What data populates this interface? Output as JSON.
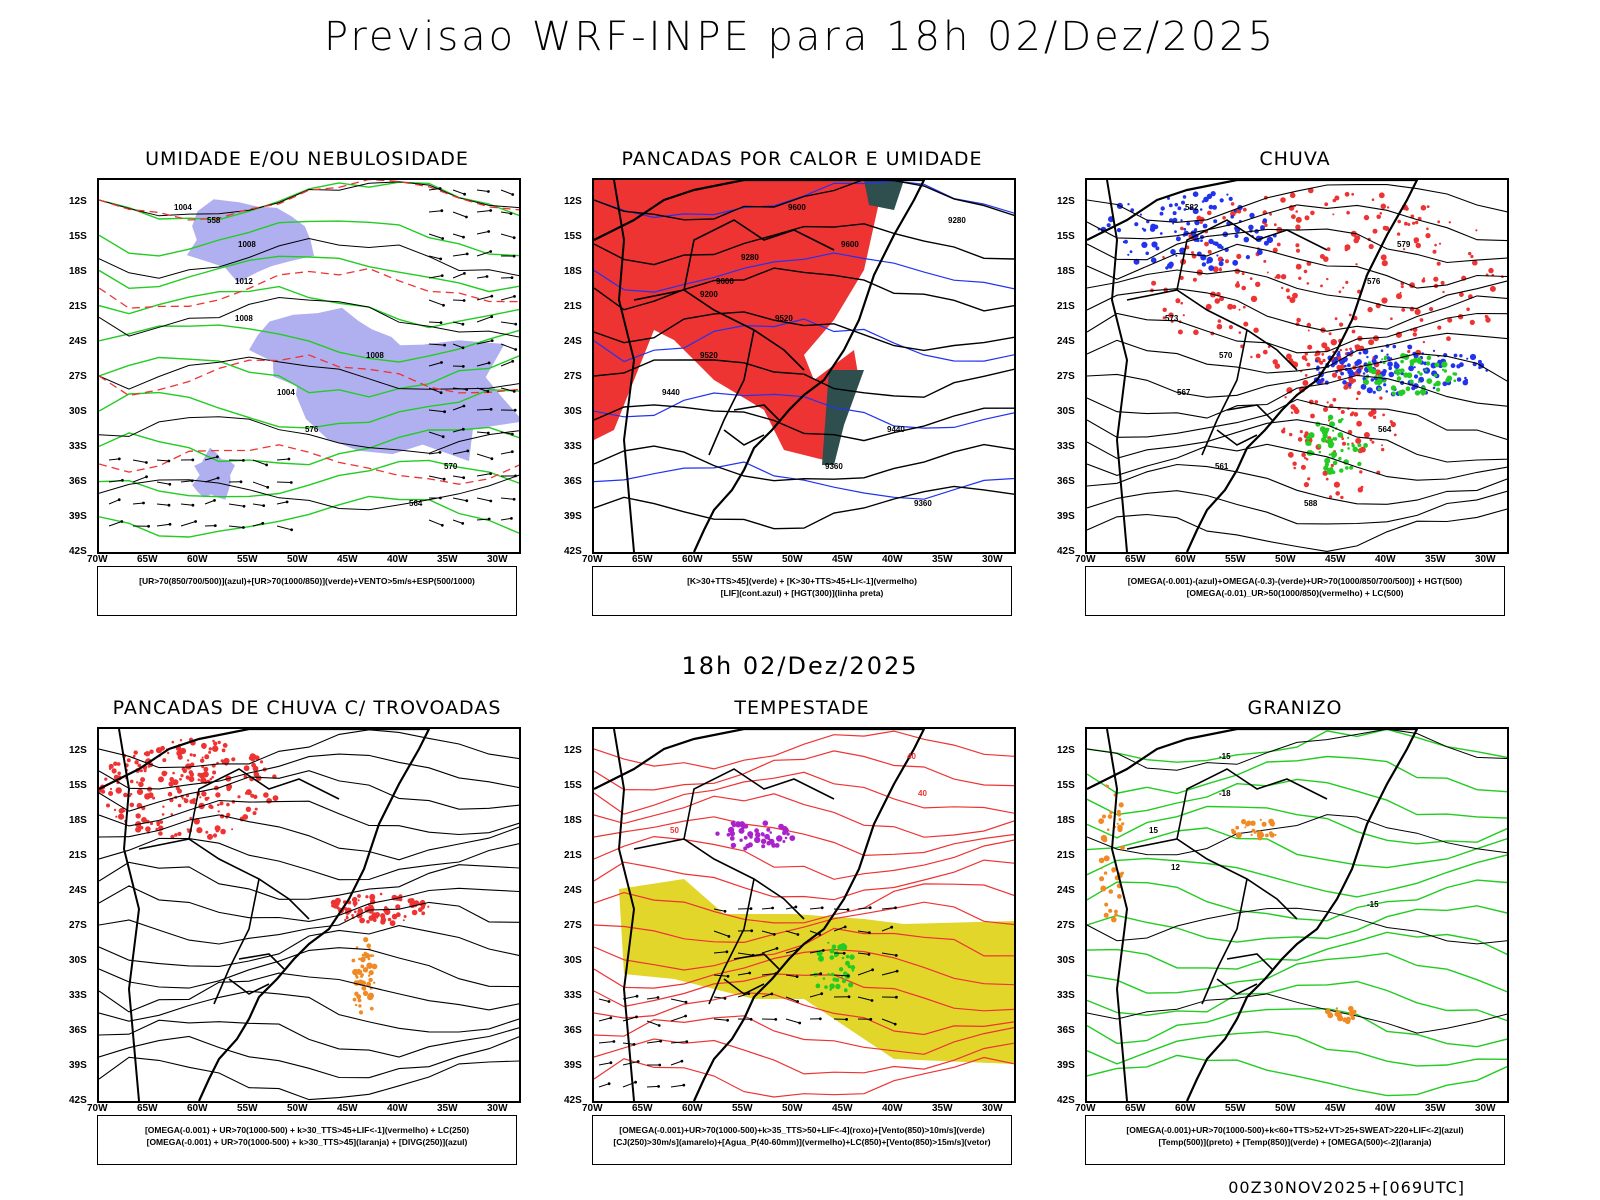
{
  "title": "Previsao WRF-INPE  para 18h 02/Dez/2025",
  "mid_title": "18h 02/Dez/2025",
  "footer": "00Z30NOV2025+[069UTC]",
  "lat_labels": [
    "12S",
    "15S",
    "18S",
    "21S",
    "24S",
    "27S",
    "30S",
    "33S",
    "36S",
    "39S",
    "42S"
  ],
  "lon_labels": [
    "70W",
    "65W",
    "60W",
    "55W",
    "50W",
    "45W",
    "40W",
    "35W",
    "30W"
  ],
  "panels": [
    {
      "title": "UMIDADE E/OU NEBULOSIDADE",
      "legend": [
        "[UR>70(850/700/500)](azul)+[UR>70(1000/850)](verde)+VENTO>5m/s+ESP(500/1000)"
      ],
      "contour_labels": [
        "1004",
        "1008",
        "1012",
        "1008",
        "1008",
        "1004",
        "576",
        "570",
        "564",
        "558"
      ]
    },
    {
      "title": "PANCADAS POR CALOR E UMIDADE",
      "legend": [
        "[K>30+TTS>45](verde) + [K>30+TTS>45+LI<-1](vermelho)",
        "[LIF](cont.azul) + [HGT(300)](linha preta)"
      ],
      "contour_labels": [
        "9600",
        "9600",
        "9600",
        "9520",
        "9520",
        "9440",
        "9440",
        "9360",
        "9360",
        "9280",
        "9280",
        "9200"
      ]
    },
    {
      "title": "CHUVA",
      "legend": [
        "[OMEGA(-0.001)-(azul)+OMEGA(-0.3)-(verde)+UR>70(1000/850/700/500)] + HGT(500)",
        "[OMEGA(-0.01)_UR>50(1000/850)(vermelho) + LC(500)"
      ],
      "contour_labels": [
        "582",
        "579",
        "576",
        "573",
        "570",
        "567",
        "564",
        "561",
        "588"
      ]
    },
    {
      "title": "PANCADAS DE CHUVA C/ TROVOADAS",
      "legend": [
        "[OMEGA(-0.001) + UR>70(1000-500) + k>30_TTS>45+LIF<-1](vermelho) + LC(250)",
        "[OMEGA(-0.001) + UR>70(1000-500) + k>30_TTS>45](laranja) + [DIVG(250)](azul)"
      ],
      "contour_labels": []
    },
    {
      "title": "TEMPESTADE",
      "legend": [
        "[OMEGA(-0.001)+UR>70(1000-500)+k>35_TTS>50+LIF<-4](roxo)+[Vento(850)>10m/s](verde)",
        "[CJ(250)>30m/s](amarelo)+[Agua_P(40-60mm)](vermelho)+LC(850)+[Vento(850)>15m/s](vetor)"
      ],
      "contour_labels": [
        "40",
        "40",
        "50"
      ]
    },
    {
      "title": "GRANIZO",
      "legend": [
        "[OMEGA(-0.001)+UR>70(1000-500)+k<60+TTS>52+VT>25+SWEAT>220+LIF<-2](azul)",
        "[Temp(500)](preto) + [Temp(850)](verde) + [OMEGA(500)<-2](laranja)"
      ],
      "contour_labels": [
        "-15",
        "-18",
        "15",
        "12",
        "-15"
      ]
    }
  ],
  "colors": {
    "blue_shade": "#b0b0f0",
    "green": "#22cc22",
    "red": "#ee3333",
    "yellow": "#e2d62a",
    "orange": "#f08a24",
    "dark_teal": "#2f4f4f",
    "blue": "#2233ee",
    "purple": "#aa22cc"
  }
}
